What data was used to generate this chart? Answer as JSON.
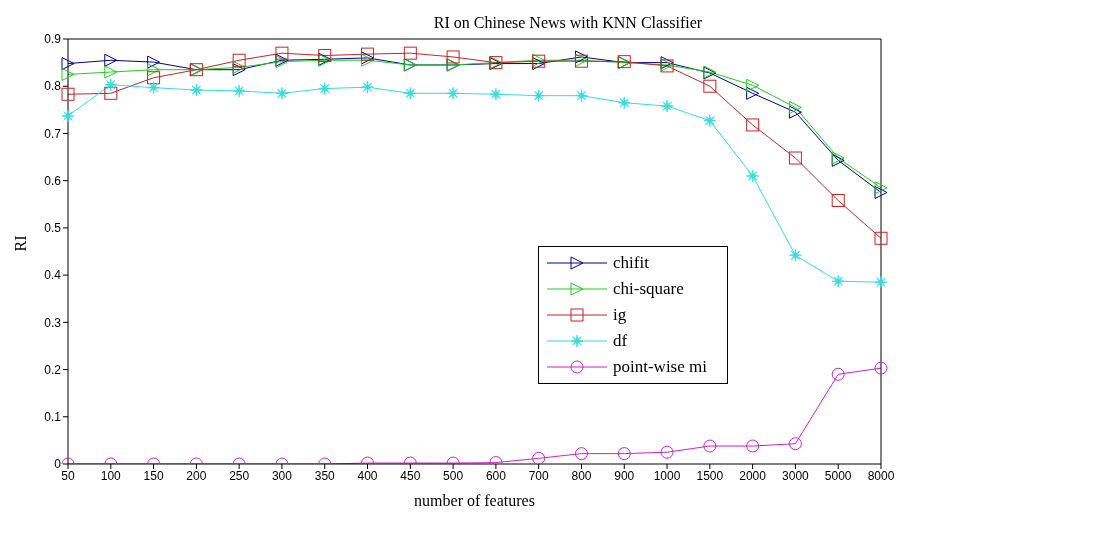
{
  "chart_data": {
    "type": "line",
    "title": "RI on Chinese News with KNN Classifier",
    "xlabel": "number of features",
    "ylabel": "RI",
    "categories": [
      "50",
      "100",
      "150",
      "200",
      "250",
      "300",
      "350",
      "400",
      "450",
      "500",
      "600",
      "700",
      "800",
      "900",
      "1000",
      "1500",
      "2000",
      "3000",
      "5000",
      "8000"
    ],
    "ylim": [
      0,
      0.9
    ],
    "yticks": [
      0,
      0.1,
      0.2,
      0.3,
      0.4,
      0.5,
      0.6,
      0.7,
      0.8,
      0.9
    ],
    "grid": false,
    "legend": "right",
    "line_style": "solid",
    "series": [
      {
        "name": "chifit",
        "color": "#00008b",
        "marker": "triangle",
        "values": [
          0.848,
          0.855,
          0.851,
          0.835,
          0.835,
          0.855,
          0.857,
          0.86,
          0.845,
          0.845,
          0.848,
          0.848,
          0.862,
          0.85,
          0.85,
          0.828,
          0.785,
          0.745,
          0.643,
          0.575
        ]
      },
      {
        "name": "chi-square",
        "color": "#22cc22",
        "marker": "triangle",
        "values": [
          0.825,
          0.83,
          0.835,
          0.835,
          0.84,
          0.852,
          0.855,
          0.855,
          0.845,
          0.845,
          0.85,
          0.855,
          0.855,
          0.85,
          0.845,
          0.83,
          0.802,
          0.755,
          0.648,
          0.585
        ]
      },
      {
        "name": "ig",
        "color": "#cc2222",
        "marker": "square",
        "values": [
          0.783,
          0.785,
          0.818,
          0.835,
          0.855,
          0.87,
          0.865,
          0.868,
          0.87,
          0.862,
          0.85,
          0.853,
          0.853,
          0.852,
          0.843,
          0.8,
          0.718,
          0.648,
          0.558,
          0.478
        ]
      },
      {
        "name": "df",
        "color": "#33dddd",
        "marker": "star",
        "values": [
          0.737,
          0.803,
          0.797,
          0.792,
          0.79,
          0.785,
          0.795,
          0.798,
          0.785,
          0.785,
          0.783,
          0.78,
          0.78,
          0.765,
          0.758,
          0.727,
          0.61,
          0.442,
          0.387,
          0.385
        ]
      },
      {
        "name": "point-wise mi",
        "color": "#cc22cc",
        "marker": "circle",
        "values": [
          0,
          0,
          0,
          0,
          0,
          0,
          0,
          0.002,
          0.002,
          0.002,
          0.003,
          0.012,
          0.022,
          0.022,
          0.025,
          0.038,
          0.038,
          0.043,
          0.19,
          0.203
        ]
      }
    ]
  }
}
